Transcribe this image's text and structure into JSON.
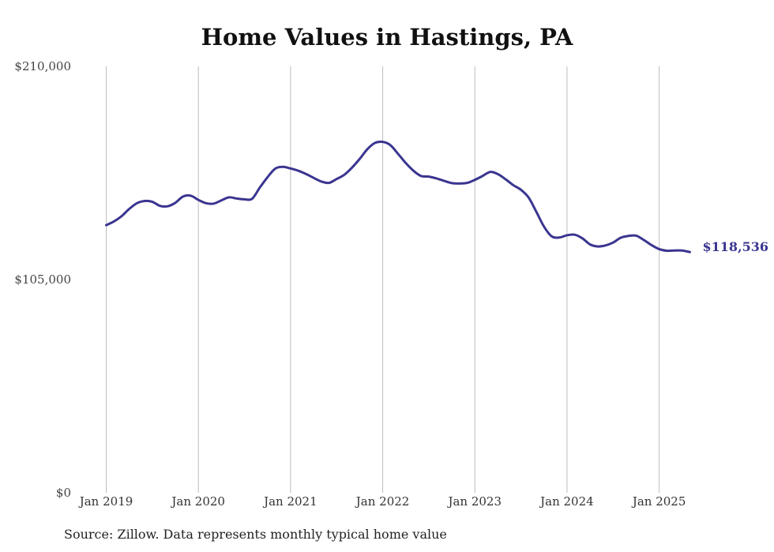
{
  "chart_data": {
    "type": "line",
    "title": "Home Values in Hastings, PA",
    "source": "Source: Zillow. Data represents monthly typical home value",
    "xlabel": "",
    "ylabel": "",
    "ylim": [
      0,
      210000
    ],
    "y_ticks": [
      {
        "value": 0,
        "label": "$0"
      },
      {
        "value": 105000,
        "label": "$105,000"
      },
      {
        "value": 210000,
        "label": "$210,000"
      }
    ],
    "x_ticks": [
      {
        "value": "2019-01",
        "label": "Jan 2019"
      },
      {
        "value": "2020-01",
        "label": "Jan 2020"
      },
      {
        "value": "2021-01",
        "label": "Jan 2021"
      },
      {
        "value": "2022-01",
        "label": "Jan 2022"
      },
      {
        "value": "2023-01",
        "label": "Jan 2023"
      },
      {
        "value": "2024-01",
        "label": "Jan 2024"
      },
      {
        "value": "2025-01",
        "label": "Jan 2025"
      }
    ],
    "grid": {
      "vertical": true,
      "horizontal": false
    },
    "legend": "none",
    "line_color": "#3a3590",
    "end_label": "$118,536",
    "series": [
      {
        "x": [
          "2019-01",
          "2019-02",
          "2019-03",
          "2019-04",
          "2019-05",
          "2019-06",
          "2019-07",
          "2019-08",
          "2019-09",
          "2019-10",
          "2019-11",
          "2019-12",
          "2020-01",
          "2020-02",
          "2020-03",
          "2020-04",
          "2020-05",
          "2020-06",
          "2020-07",
          "2020-08",
          "2020-09",
          "2020-10",
          "2020-11",
          "2020-12",
          "2021-01",
          "2021-02",
          "2021-03",
          "2021-04",
          "2021-05",
          "2021-06",
          "2021-07",
          "2021-08",
          "2021-09",
          "2021-10",
          "2021-11",
          "2021-12",
          "2022-01",
          "2022-02",
          "2022-03",
          "2022-04",
          "2022-05",
          "2022-06",
          "2022-07",
          "2022-08",
          "2022-09",
          "2022-10",
          "2022-11",
          "2022-12",
          "2023-01",
          "2023-02",
          "2023-03",
          "2023-04",
          "2023-05",
          "2023-06",
          "2023-07",
          "2023-08",
          "2023-09",
          "2023-10",
          "2023-11",
          "2023-12",
          "2024-01",
          "2024-02",
          "2024-03",
          "2024-04",
          "2024-05",
          "2024-06",
          "2024-07",
          "2024-08",
          "2024-09",
          "2024-10",
          "2024-11",
          "2024-12",
          "2025-01",
          "2025-02",
          "2025-03",
          "2025-04",
          "2025-05"
        ],
        "values": [
          131800,
          133600,
          136200,
          139800,
          142600,
          143700,
          143300,
          141300,
          141100,
          142800,
          145900,
          146300,
          144200,
          142600,
          142400,
          144000,
          145500,
          144900,
          144500,
          144800,
          150300,
          155400,
          159600,
          160500,
          159700,
          158600,
          157000,
          155100,
          153300,
          152600,
          154500,
          156600,
          160100,
          164400,
          169200,
          172300,
          172800,
          171200,
          166900,
          162400,
          158600,
          156000,
          155700,
          154800,
          153600,
          152500,
          152300,
          152600,
          154100,
          156000,
          158000,
          156900,
          154400,
          151500,
          149200,
          145400,
          138400,
          131100,
          126300,
          125700,
          126800,
          127100,
          125300,
          122300,
          121300,
          121800,
          123200,
          125600,
          126500,
          126600,
          124500,
          122000,
          120000,
          119200,
          119300,
          119300,
          118536
        ]
      }
    ]
  }
}
